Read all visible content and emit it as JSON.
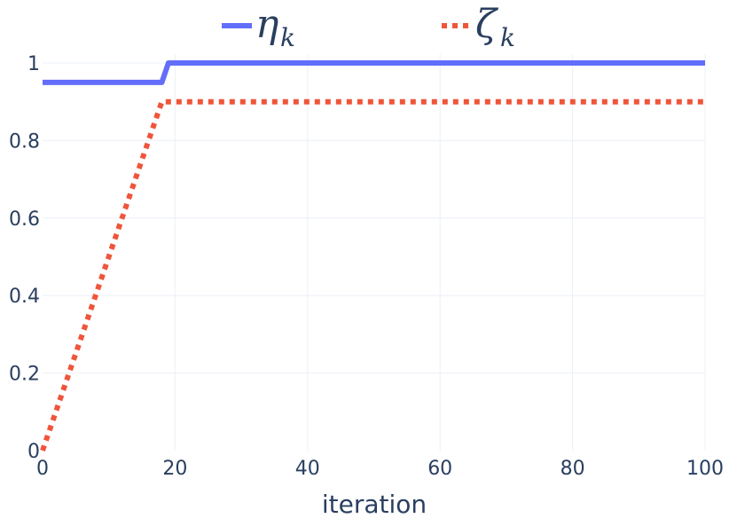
{
  "chart_data": {
    "type": "line",
    "xlabel": "iteration",
    "ylabel": "",
    "xlim": [
      0,
      100
    ],
    "ylim": [
      0,
      1
    ],
    "x_ticks": [
      0,
      20,
      40,
      60,
      80,
      100
    ],
    "y_ticks": [
      0,
      0.2,
      0.4,
      0.6,
      0.8,
      1
    ],
    "x_tick_labels": [
      "0",
      "20",
      "40",
      "60",
      "80",
      "100"
    ],
    "y_tick_labels": [
      "0",
      "0.2",
      "0.4",
      "0.6",
      "0.8",
      "1"
    ],
    "grid": true,
    "legend_position": "top",
    "series": [
      {
        "name_base": "η",
        "name_sub": "k",
        "color": "#636efa",
        "style": "solid",
        "x": [
          0,
          18,
          19,
          100
        ],
        "y": [
          0.95,
          0.95,
          1.0,
          1.0
        ]
      },
      {
        "name_base": "ζ",
        "name_sub": "k",
        "color": "#ef553b",
        "style": "dotted",
        "x": [
          0,
          18,
          100
        ],
        "y": [
          0,
          0.9,
          0.9
        ]
      }
    ]
  }
}
